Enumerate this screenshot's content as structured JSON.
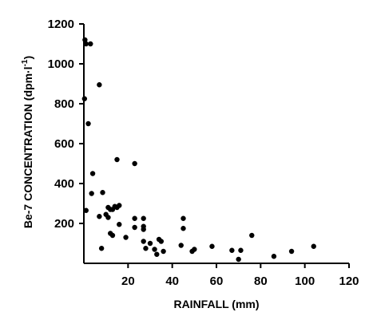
{
  "chart_data": {
    "type": "scatter",
    "title": "",
    "xlabel": "RAINFALL (mm)",
    "ylabel_main": "Be-7 CONCENTRATION (dpm·l",
    "ylabel_sup": "-1",
    "ylabel_close": ")",
    "xlim": [
      0,
      120
    ],
    "ylim": [
      0,
      1200
    ],
    "xticks": [
      20,
      40,
      60,
      80,
      100,
      120
    ],
    "yticks": [
      200,
      400,
      600,
      800,
      1000,
      1200
    ],
    "grid": false,
    "legend": "none",
    "marker_color": "#000000",
    "points": [
      {
        "x": 0.5,
        "y": 1120
      },
      {
        "x": 1.0,
        "y": 1100
      },
      {
        "x": 3.0,
        "y": 1100
      },
      {
        "x": 0.3,
        "y": 825
      },
      {
        "x": 7.0,
        "y": 895
      },
      {
        "x": 2.0,
        "y": 700
      },
      {
        "x": 4.0,
        "y": 450
      },
      {
        "x": 3.5,
        "y": 350
      },
      {
        "x": 8.5,
        "y": 355
      },
      {
        "x": 1.0,
        "y": 265
      },
      {
        "x": 7.0,
        "y": 235
      },
      {
        "x": 10.0,
        "y": 245
      },
      {
        "x": 11.0,
        "y": 230
      },
      {
        "x": 11.0,
        "y": 280
      },
      {
        "x": 12.0,
        "y": 270
      },
      {
        "x": 13.0,
        "y": 270
      },
      {
        "x": 14.0,
        "y": 285
      },
      {
        "x": 15.0,
        "y": 280
      },
      {
        "x": 16.0,
        "y": 290
      },
      {
        "x": 15.0,
        "y": 520
      },
      {
        "x": 23.0,
        "y": 500
      },
      {
        "x": 8.0,
        "y": 75
      },
      {
        "x": 12.0,
        "y": 150
      },
      {
        "x": 13.0,
        "y": 140
      },
      {
        "x": 16.0,
        "y": 195
      },
      {
        "x": 19.0,
        "y": 130
      },
      {
        "x": 23.0,
        "y": 225
      },
      {
        "x": 23.0,
        "y": 180
      },
      {
        "x": 27.0,
        "y": 225
      },
      {
        "x": 27.0,
        "y": 185
      },
      {
        "x": 27.0,
        "y": 170
      },
      {
        "x": 27.0,
        "y": 110
      },
      {
        "x": 28.0,
        "y": 75
      },
      {
        "x": 30.0,
        "y": 100
      },
      {
        "x": 32.0,
        "y": 70
      },
      {
        "x": 34.0,
        "y": 120
      },
      {
        "x": 35.0,
        "y": 110
      },
      {
        "x": 33.0,
        "y": 45
      },
      {
        "x": 36.0,
        "y": 60
      },
      {
        "x": 44.0,
        "y": 90
      },
      {
        "x": 45.0,
        "y": 225
      },
      {
        "x": 45.0,
        "y": 175
      },
      {
        "x": 49.0,
        "y": 60
      },
      {
        "x": 50.0,
        "y": 70
      },
      {
        "x": 58.0,
        "y": 85
      },
      {
        "x": 67.0,
        "y": 65
      },
      {
        "x": 70.0,
        "y": 20
      },
      {
        "x": 71.0,
        "y": 65
      },
      {
        "x": 76.0,
        "y": 140
      },
      {
        "x": 86.0,
        "y": 35
      },
      {
        "x": 94.0,
        "y": 60
      },
      {
        "x": 104.0,
        "y": 85
      }
    ]
  }
}
